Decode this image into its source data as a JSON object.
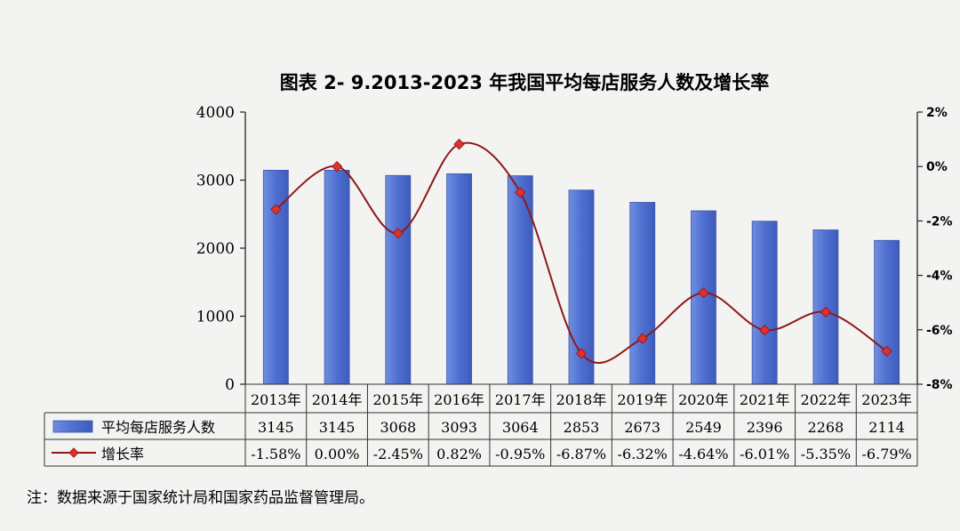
{
  "chart_data": {
    "type": "bar",
    "title": "图表 2- 9.2013-2023 年我国平均每店服务人数及增长率",
    "categories": [
      "2013年",
      "2014年",
      "2015年",
      "2016年",
      "2017年",
      "2018年",
      "2019年",
      "2020年",
      "2021年",
      "2022年",
      "2023年"
    ],
    "series": [
      {
        "name": "平均每店服务人数",
        "type": "bar",
        "axis": "left",
        "color": "#4f6fd0",
        "values": [
          3145,
          3145,
          3068,
          3093,
          3064,
          2853,
          2673,
          2549,
          2396,
          2268,
          2114
        ],
        "labels": [
          "3145",
          "3145",
          "3068",
          "3093",
          "3064",
          "2853",
          "2673",
          "2549",
          "2396",
          "2268",
          "2114"
        ]
      },
      {
        "name": "增长率",
        "type": "line",
        "axis": "right",
        "color": "#8b1a1a",
        "marker_color": "#e03030",
        "values": [
          -1.58,
          0.0,
          -2.45,
          0.82,
          -0.95,
          -6.87,
          -6.32,
          -4.64,
          -6.01,
          -5.35,
          -6.79
        ],
        "labels": [
          "-1.58%",
          "0.00%",
          "-2.45%",
          "0.82%",
          "-0.95%",
          "-6.87%",
          "-6.32%",
          "-4.64%",
          "-6.01%",
          "-5.35%",
          "-6.79%"
        ]
      }
    ],
    "y_left": {
      "ylim": [
        0,
        4000
      ],
      "ticks": [
        "0",
        "1000",
        "2000",
        "3000",
        "4000"
      ],
      "tick_values": [
        0,
        1000,
        2000,
        3000,
        4000
      ]
    },
    "y_right": {
      "ylim": [
        -8,
        2
      ],
      "ticks": [
        "-8%",
        "-6%",
        "-4%",
        "-2%",
        "0%",
        "2%"
      ],
      "tick_values": [
        -8,
        -6,
        -4,
        -2,
        0,
        2
      ]
    },
    "grid": false,
    "legend": "data-table"
  },
  "note": "注：数据来源于国家统计局和国家药品监督管理局。"
}
